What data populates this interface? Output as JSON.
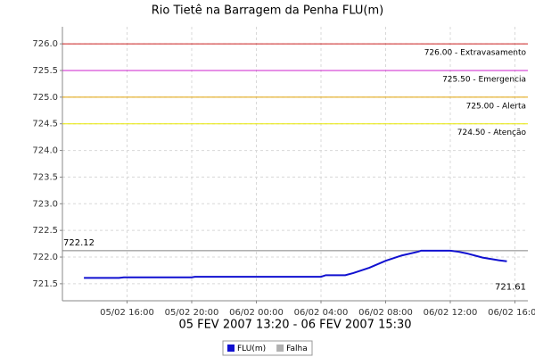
{
  "chart_data": {
    "type": "line",
    "title": "Rio Tietê na Barragem da Penha FLU(m)",
    "x_label": "05 FEV 2007 13:20 - 06 FEV 2007 15:30",
    "x": [
      13.33,
      15.5,
      15.8,
      20,
      20.2,
      28,
      28.3,
      29.5,
      30,
      31,
      32,
      33,
      34,
      34.2,
      36,
      36.5,
      37,
      38,
      39,
      39.5
    ],
    "series": [
      {
        "name": "FLU(m)",
        "color": "#1010d0",
        "values": [
          721.61,
          721.61,
          721.62,
          721.62,
          721.63,
          721.63,
          721.66,
          721.66,
          721.7,
          721.8,
          721.93,
          722.03,
          722.1,
          722.12,
          722.12,
          722.1,
          722.07,
          721.99,
          721.94,
          721.92
        ]
      },
      {
        "name": "Falha",
        "color": "#b0b0b0",
        "values": [
          null,
          null,
          null,
          null,
          null,
          null,
          null,
          null,
          null,
          null,
          null,
          null,
          null,
          null,
          null,
          null,
          null,
          null,
          null,
          null
        ]
      }
    ],
    "xlim": [
      12,
      40.8
    ],
    "xticks": [
      {
        "value": 16,
        "label": "05/02 16:00"
      },
      {
        "value": 20,
        "label": "05/02 20:00"
      },
      {
        "value": 24,
        "label": "06/02 00:00"
      },
      {
        "value": 28,
        "label": "06/02 04:00"
      },
      {
        "value": 32,
        "label": "06/02 08:00"
      },
      {
        "value": 36,
        "label": "06/02 12:00"
      },
      {
        "value": 40,
        "label": "06/02 16:00"
      }
    ],
    "ylim": [
      721.18,
      726.32
    ],
    "yticks": [
      721.5,
      {
        "value": 722,
        "label": "722.0"
      },
      722.5,
      {
        "value": 723,
        "label": "723.0"
      },
      723.5,
      {
        "value": 724,
        "label": "724.0"
      },
      724.5,
      {
        "value": 725,
        "label": "725.0"
      },
      725.5,
      {
        "value": 726,
        "label": "726.0"
      }
    ],
    "grid": true,
    "thresholds": [
      {
        "value": 726.0,
        "label": "726.00 - Extravasamento",
        "color": "#cc2020"
      },
      {
        "value": 725.5,
        "label": "725.50 - Emergencia",
        "color": "#cc20cc"
      },
      {
        "value": 725.0,
        "label": "725.00 - Alerta",
        "color": "#e0a000"
      },
      {
        "value": 724.5,
        "label": "724.50 - Atenção",
        "color": "#e8e800"
      }
    ],
    "max_line": {
      "value": 722.12,
      "label": "722.12",
      "color": "#808080"
    },
    "min_label": {
      "value": 721.61,
      "label": "721.61"
    }
  }
}
